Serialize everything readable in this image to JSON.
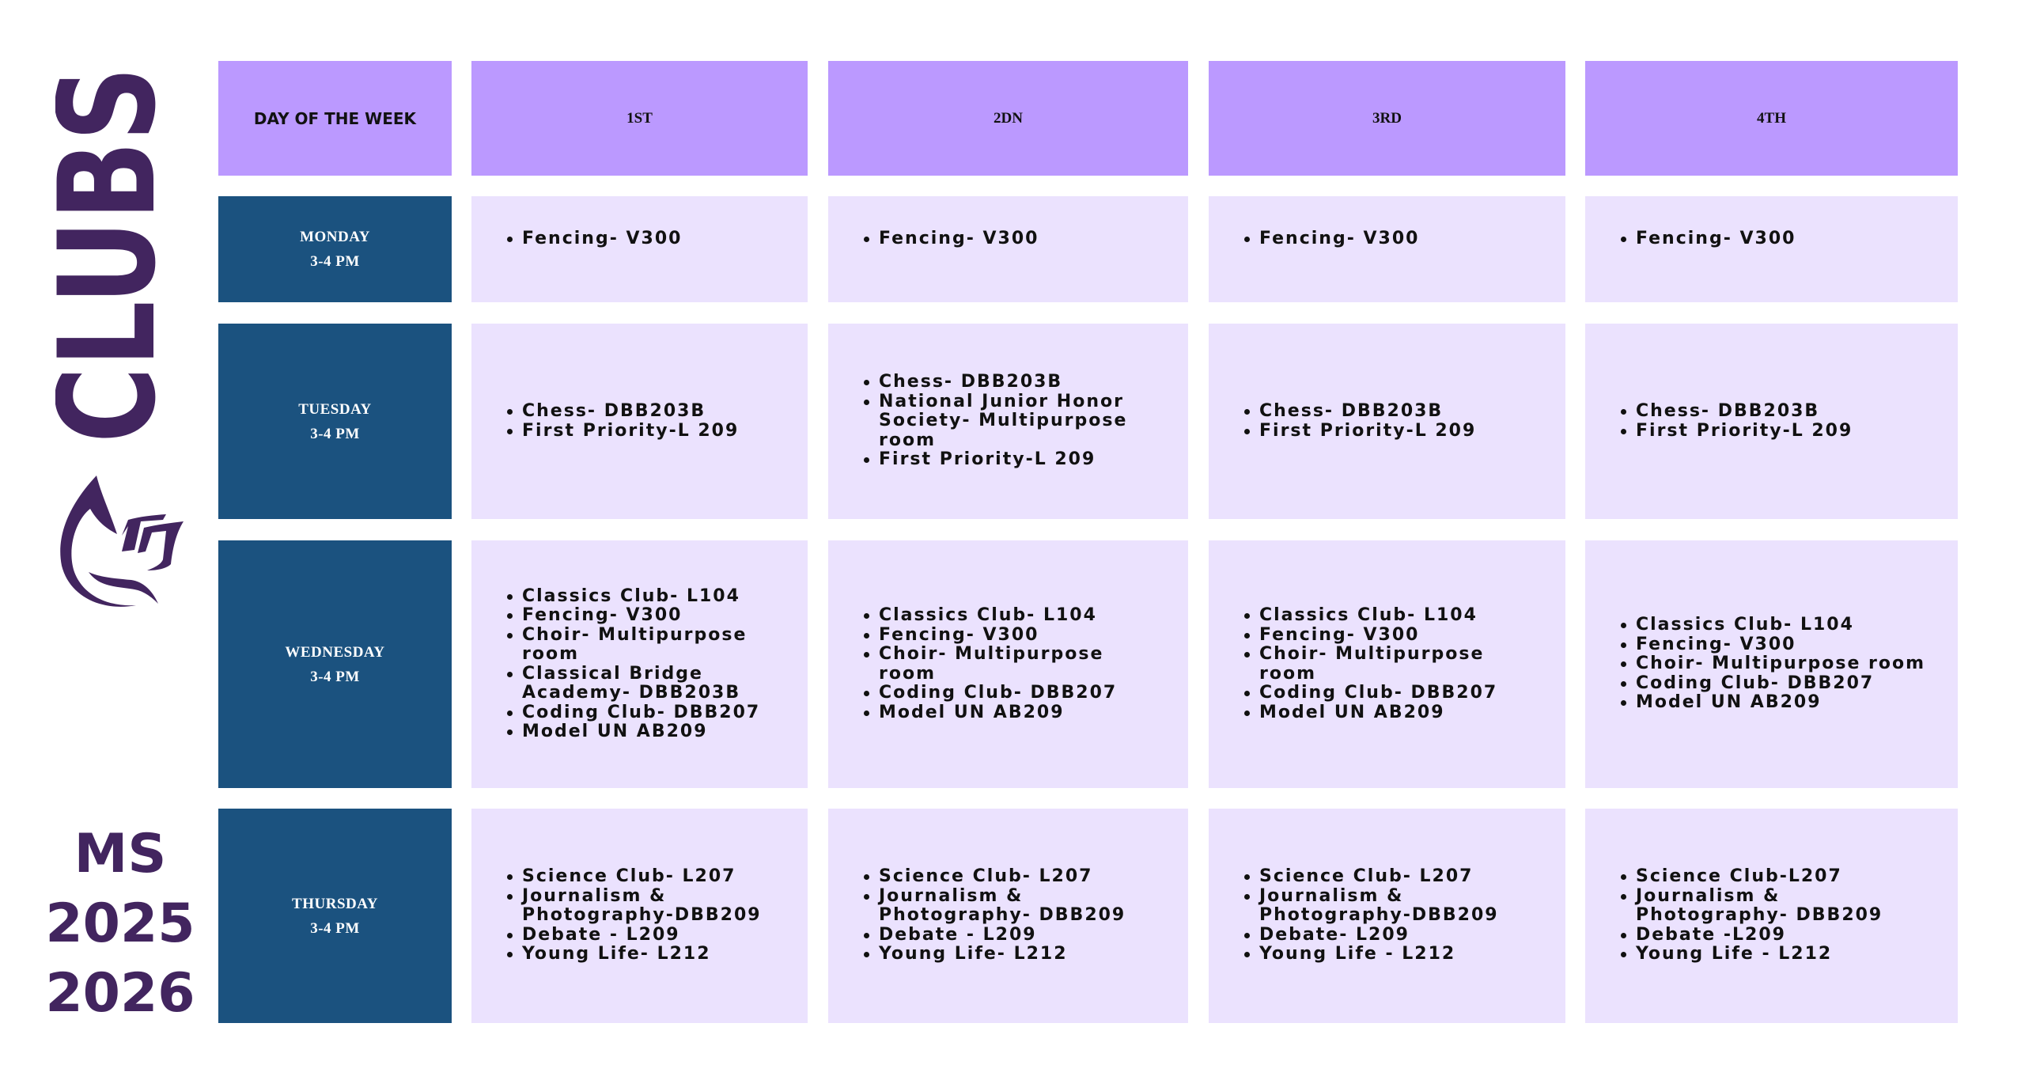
{
  "title": "CLUBS",
  "subtitle": [
    "MS",
    "2025",
    "2026"
  ],
  "colors": {
    "header": "#bb99ff",
    "cell": "#ebe2fe",
    "day": "#1b527f",
    "brand": "#42255f"
  },
  "logo_icon": "dove-flame-logo",
  "table": {
    "headers": [
      "DAY OF THE WEEK",
      "1ST",
      "2DN",
      "3RD",
      "4TH"
    ],
    "rows": [
      {
        "day": "MONDAY",
        "time": "3-4 PM",
        "cells": [
          [
            "Fencing- V300"
          ],
          [
            "Fencing- V300"
          ],
          [
            "Fencing- V300"
          ],
          [
            "Fencing- V300"
          ]
        ]
      },
      {
        "day": "TUESDAY",
        "time": "3-4 PM",
        "cells": [
          [
            "Chess- DBB203B",
            "First Priority-L 209"
          ],
          [
            "Chess- DBB203B",
            "National Junior Honor Society- Multipurpose room",
            "First Priority-L 209"
          ],
          [
            "Chess- DBB203B",
            "First Priority-L 209"
          ],
          [
            "Chess- DBB203B",
            "First Priority-L 209"
          ]
        ]
      },
      {
        "day": "WEDNESDAY",
        "time": "3-4 PM",
        "cells": [
          [
            "Classics Club- L104",
            "Fencing- V300",
            "Choir- Multipurpose room",
            "Classical Bridge Academy- DBB203B",
            "Coding Club- DBB207",
            "Model UN AB209"
          ],
          [
            "Classics Club- L104",
            "Fencing- V300",
            "Choir- Multipurpose room",
            "Coding Club- DBB207",
            "Model UN AB209"
          ],
          [
            "Classics Club- L104",
            "Fencing- V300",
            "Choir- Multipurpose room",
            "Coding Club- DBB207",
            "Model UN AB209"
          ],
          [
            "Classics Club- L104",
            "Fencing- V300",
            "Choir- Multipurpose room",
            "Coding Club- DBB207",
            "Model UN AB209"
          ]
        ]
      },
      {
        "day": "THURSDAY",
        "time": "3-4 PM",
        "cells": [
          [
            "Science Club- L207",
            "Journalism & Photography-DBB209",
            "Debate - L209",
            "Young Life- L212"
          ],
          [
            "Science Club- L207",
            "Journalism & Photography- DBB209",
            "Debate - L209",
            "Young Life- L212"
          ],
          [
            "Science Club- L207",
            "Journalism & Photography-DBB209",
            "Debate- L209",
            "Young Life - L212"
          ],
          [
            "Science Club-L207",
            "Journalism & Photography- DBB209",
            "Debate -L209",
            "Young Life - L212"
          ]
        ]
      }
    ]
  }
}
